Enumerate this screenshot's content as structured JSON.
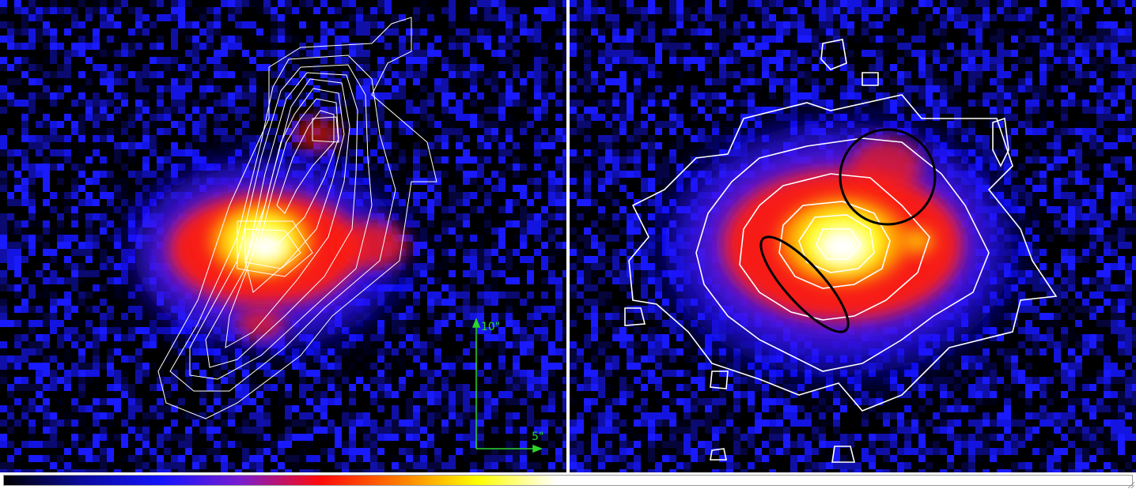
{
  "panels": [
    {
      "id": "left",
      "description_label": ""
    },
    {
      "id": "right",
      "description_label": ""
    }
  ],
  "scale_bar": {
    "vertical_label": "10\"",
    "horizontal_label": "5\"",
    "color": "#2cd52c"
  },
  "colorbar": {
    "stops": [
      "#000000",
      "#0a0aa0",
      "#1414ff",
      "#7a1ccf",
      "#ff0a0a",
      "#ff7a00",
      "#ffff00",
      "#ffffff"
    ]
  },
  "colors": {
    "background": "#000000",
    "contour": "#ffffff",
    "region_marker": "#000000"
  }
}
